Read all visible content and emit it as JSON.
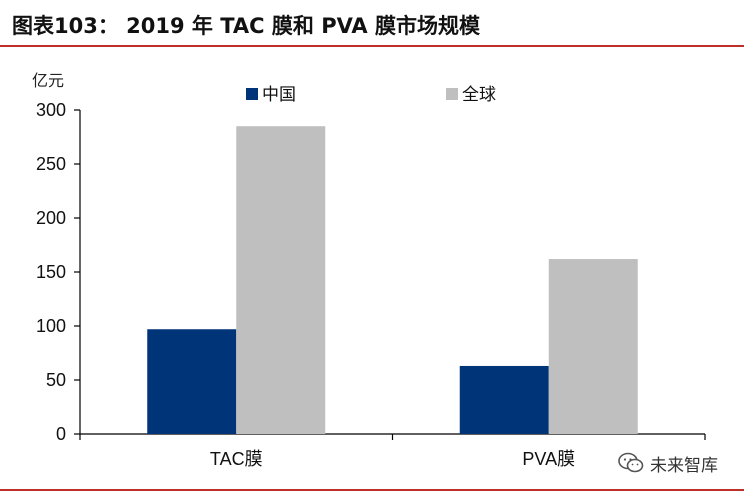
{
  "header": {
    "title": "图表103：   2019 年 TAC 膜和 PVA 膜市场规模"
  },
  "chart_data": {
    "type": "bar",
    "categories": [
      "TAC膜",
      "PVA膜"
    ],
    "series": [
      {
        "name": "中国",
        "values": [
          97,
          63
        ],
        "color": "#003478"
      },
      {
        "name": "全球",
        "values": [
          285,
          162
        ],
        "color": "#bfbfbf"
      }
    ],
    "ylabel": "亿元",
    "ylim": [
      0,
      300
    ],
    "yticks": [
      "0",
      "50",
      "100",
      "150",
      "200",
      "250",
      "300"
    ],
    "grid": false,
    "legend": "top"
  },
  "watermark": {
    "text": "未来智库",
    "icon": "wechat-icon"
  }
}
